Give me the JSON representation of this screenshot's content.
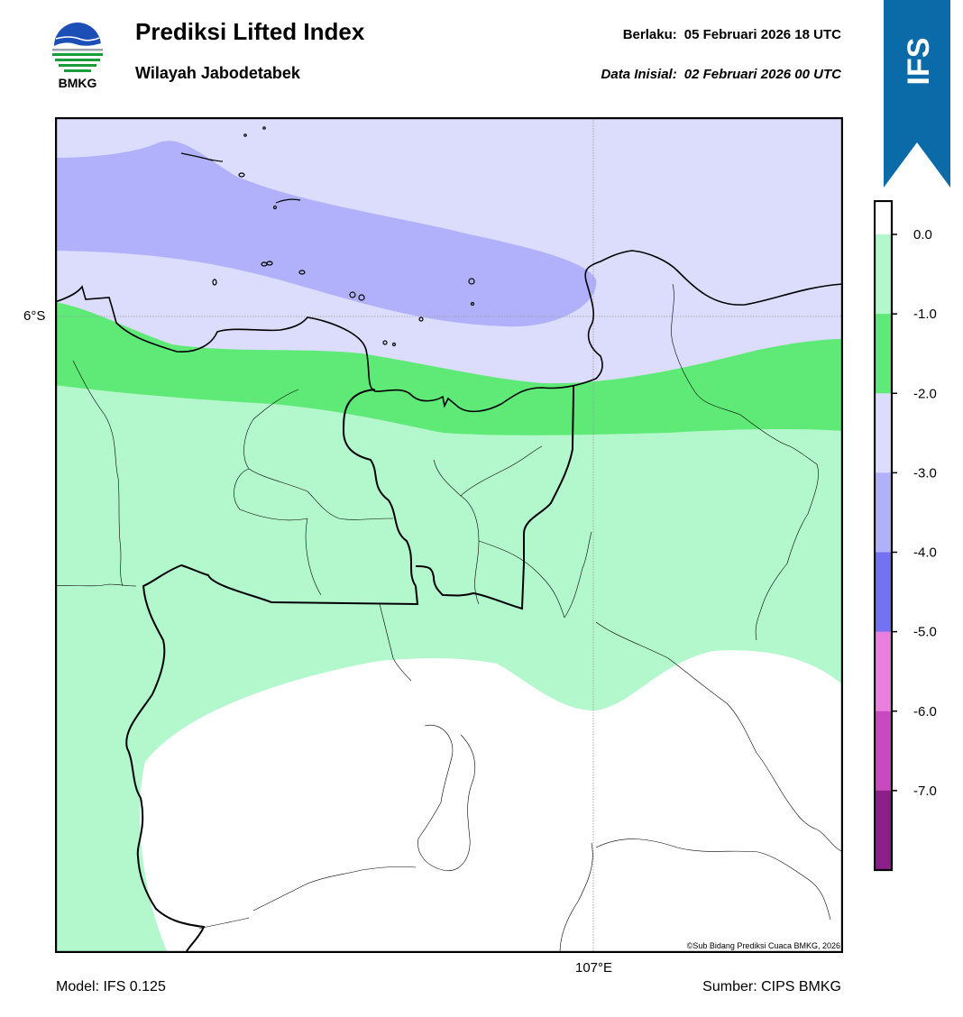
{
  "header": {
    "logo_text": "BMKG",
    "title": "Prediksi Lifted Index",
    "subtitle": "Wilayah Jabodetabek",
    "valid_label": "Berlaku:",
    "valid_value": "05 Februari 2026 18 UTC",
    "init_label": "Data Inisial:",
    "init_value": "02 Februari 2026 00 UTC"
  },
  "badge": {
    "text": "IFS",
    "color": "#0b6aa8"
  },
  "axes": {
    "lat_label": "6°S",
    "lon_label": "107°E"
  },
  "footer": {
    "model": "Model: IFS 0.125",
    "source": "Sumber: CIPS BMKG",
    "credit": "©Sub Bidang Prediksi Cuaca BMKG, 2026"
  },
  "legend": {
    "levels": [
      {
        "label": "0.0",
        "color": "#b3f7cd"
      },
      {
        "label": "-1.0",
        "color": "#5fea77"
      },
      {
        "label": "-2.0",
        "color": "#dcdcfd"
      },
      {
        "label": "-3.0",
        "color": "#b1b1fb"
      },
      {
        "label": "-4.0",
        "color": "#7272f2"
      },
      {
        "label": "-5.0",
        "color": "#ea7fe0"
      },
      {
        "label": "-6.0",
        "color": "#c94ac0"
      },
      {
        "label": "-7.0",
        "color": "#8c1f89"
      }
    ]
  },
  "map": {
    "fill_colors": {
      "sea_shallow": "#dcdcfd",
      "band_dark": "#b1b1fb",
      "band_green": "#5fea77",
      "band_light": "#b3f7cd",
      "neutral": "#ffffff"
    }
  }
}
